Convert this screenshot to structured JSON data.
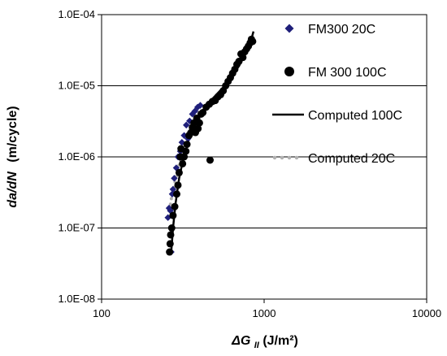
{
  "chart_data": {
    "type": "scatter",
    "title": "",
    "xlabel": {
      "delta": "ΔG",
      "subscript": "II",
      "unit": "(J/m²)"
    },
    "ylabel": {
      "italic": "da/dN",
      "unit": "(m/cycle)"
    },
    "x_scale": "log",
    "y_scale": "log",
    "xlim": [
      100,
      10000
    ],
    "ylim": [
      1e-08,
      0.0001
    ],
    "x_ticks": [
      100,
      1000,
      10000
    ],
    "x_tick_labels": [
      "100",
      "1000",
      "10000"
    ],
    "y_ticks": [
      1e-08,
      1e-07,
      1e-06,
      1e-05,
      0.0001
    ],
    "y_tick_labels": [
      "1.0E-08",
      "1.0E-07",
      "1.0E-06",
      "1.0E-05",
      "1.0E-04"
    ],
    "grid": "horizontal major",
    "legend_position": "right",
    "series": [
      {
        "name": "FM300 20C",
        "kind": "points",
        "marker": "diamond",
        "color": "#1f1f7a",
        "points": [
          [
            256,
            1.4e-07
          ],
          [
            260,
            1.9e-07
          ],
          [
            265,
            1.75e-07
          ],
          [
            268,
            4.6e-08
          ],
          [
            272,
            3e-07
          ],
          [
            275,
            3.5e-07
          ],
          [
            280,
            5e-07
          ],
          [
            288,
            7e-07
          ],
          [
            295,
            1e-06
          ],
          [
            305,
            1.2e-06
          ],
          [
            312,
            1.6e-06
          ],
          [
            322,
            2e-06
          ],
          [
            332,
            2.8e-06
          ],
          [
            340,
            1.8e-06
          ],
          [
            348,
            3.2e-06
          ],
          [
            362,
            4e-06
          ],
          [
            375,
            4.4e-06
          ],
          [
            390,
            5e-06
          ],
          [
            405,
            5.3e-06
          ]
        ]
      },
      {
        "name": "FM 300 100C",
        "kind": "points",
        "marker": "circle",
        "color": "#000000",
        "points": [
          [
            262,
            4.6e-08
          ],
          [
            264,
            6e-08
          ],
          [
            266,
            8e-08
          ],
          [
            270,
            1e-07
          ],
          [
            275,
            1.5e-07
          ],
          [
            282,
            2e-07
          ],
          [
            290,
            3e-07
          ],
          [
            295,
            4e-07
          ],
          [
            300,
            6e-07
          ],
          [
            305,
            1e-06
          ],
          [
            308,
            1.3e-06
          ],
          [
            315,
            8e-07
          ],
          [
            322,
            1e-06
          ],
          [
            330,
            1.2e-06
          ],
          [
            335,
            1.5e-06
          ],
          [
            345,
            2e-06
          ],
          [
            355,
            2.2e-06
          ],
          [
            362,
            2.6e-06
          ],
          [
            370,
            3e-06
          ],
          [
            378,
            2.2e-06
          ],
          [
            385,
            3.5e-06
          ],
          [
            392,
            2.5e-06
          ],
          [
            400,
            3e-06
          ],
          [
            410,
            4e-06
          ],
          [
            420,
            4.2e-06
          ],
          [
            440,
            5e-06
          ],
          [
            460,
            5.5e-06
          ],
          [
            465,
            9e-07
          ],
          [
            480,
            6e-06
          ],
          [
            500,
            6.2e-06
          ],
          [
            520,
            7e-06
          ],
          [
            540,
            7.5e-06
          ],
          [
            560,
            8.5e-06
          ],
          [
            580,
            1e-05
          ],
          [
            600,
            1.15e-05
          ],
          [
            620,
            1.3e-05
          ],
          [
            640,
            1.5e-05
          ],
          [
            660,
            1.7e-05
          ],
          [
            680,
            2e-05
          ],
          [
            700,
            2.2e-05
          ],
          [
            720,
            2.8e-05
          ],
          [
            740,
            2.5e-05
          ],
          [
            760,
            3e-05
          ],
          [
            780,
            3.3e-05
          ],
          [
            800,
            3.6e-05
          ],
          [
            820,
            4e-05
          ],
          [
            835,
            4.5e-05
          ],
          [
            850,
            4.2e-05
          ]
        ]
      },
      {
        "name": "Computed 100C",
        "kind": "line",
        "style": "solid",
        "color": "#000000",
        "points": [
          [
            268,
            4.5e-08
          ],
          [
            275,
            1e-07
          ],
          [
            285,
            2.2e-07
          ],
          [
            300,
            5e-07
          ],
          [
            320,
            1e-06
          ],
          [
            350,
            2e-06
          ],
          [
            400,
            3.8e-06
          ],
          [
            450,
            5.6e-06
          ],
          [
            500,
            7.2e-06
          ],
          [
            600,
            1.12e-05
          ],
          [
            700,
            1.9e-05
          ],
          [
            780,
            3e-05
          ],
          [
            830,
            4.3e-05
          ],
          [
            860,
            5.8e-05
          ]
        ]
      },
      {
        "name": "Computed 20C",
        "kind": "line",
        "style": "dotted",
        "color": "#b0b0b0",
        "points": [
          [
            262,
            1.8e-07
          ],
          [
            270,
            2.8e-07
          ],
          [
            280,
            4e-07
          ],
          [
            292,
            6e-07
          ],
          [
            308,
            1e-06
          ],
          [
            330,
            1.8e-06
          ],
          [
            360,
            3e-06
          ],
          [
            400,
            4.7e-06
          ]
        ]
      }
    ],
    "legend_entries": [
      {
        "label_a": "FM300",
        "label_b": "20C",
        "marker": "diamond",
        "color": "#1f1f7a"
      },
      {
        "label_a": "FM",
        "label_b": "300 100C",
        "marker": "circle",
        "color": "#000000"
      },
      {
        "label_a": "Computed",
        "label_b": "100C",
        "marker": "solid-line",
        "color": "#000000"
      },
      {
        "label_a": "Computed",
        "label_b": "20C",
        "marker": "dotted-line",
        "color": "#b0b0b0"
      }
    ]
  }
}
